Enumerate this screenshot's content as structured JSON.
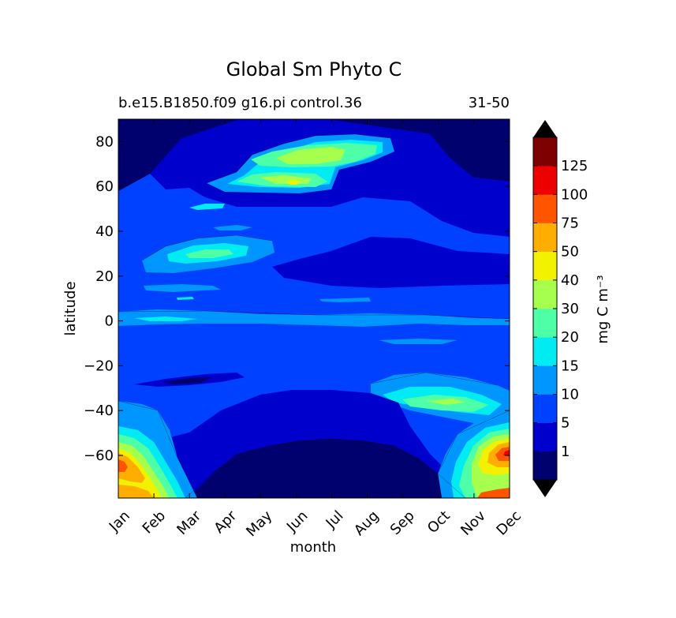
{
  "chart_data": {
    "type": "contourf",
    "title": "Global Sm Phyto C",
    "subtitle_left": "b.e15.B1850.f09 g16.pi control.36",
    "subtitle_right": "31-50",
    "xlabel": "month",
    "ylabel": "latitude",
    "x_ticks": [
      "Jan",
      "Feb",
      "Mar",
      "Apr",
      "May",
      "Jun",
      "Jul",
      "Aug",
      "Sep",
      "Oct",
      "Nov",
      "Dec"
    ],
    "y_ticks": [
      -60,
      -40,
      -20,
      0,
      20,
      40,
      60,
      80
    ],
    "ylim": [
      -79,
      90
    ],
    "colorbar": {
      "label": "mg C m⁻³",
      "levels": [
        1,
        5,
        10,
        15,
        20,
        30,
        40,
        50,
        75,
        100,
        125
      ],
      "tick_labels": [
        "1",
        "5",
        "10",
        "15",
        "20",
        "30",
        "40",
        "50",
        "75",
        "100",
        "125"
      ],
      "extend": "both",
      "colors": [
        "#00006e",
        "#0000cd",
        "#0040ff",
        "#0096ff",
        "#00ecf2",
        "#4dffa6",
        "#a6ff4d",
        "#f2f200",
        "#ffad00",
        "#ff5500",
        "#ee0000",
        "#7f0000"
      ]
    },
    "features": [
      {
        "region": "Northern spring-summer bloom",
        "months": "May-Aug",
        "latitude": [
          55,
          80
        ],
        "value": "20-40"
      },
      {
        "region": "Subtropical north patch",
        "months": "Apr",
        "latitude": [
          25,
          35
        ],
        "value": "15-30"
      },
      {
        "region": "Southern Ocean bloom",
        "months": "Nov-Feb",
        "latitude": [
          -79,
          -50
        ],
        "value": "up to 100+"
      },
      {
        "region": "Southern subtropical front",
        "months": "Sep-Nov",
        "latitude": [
          -45,
          -30
        ],
        "value": "10-30"
      },
      {
        "region": "Polar night minimum",
        "months": "Apr-Oct",
        "latitude": [
          -79,
          -55
        ],
        "value": "<1"
      }
    ]
  }
}
